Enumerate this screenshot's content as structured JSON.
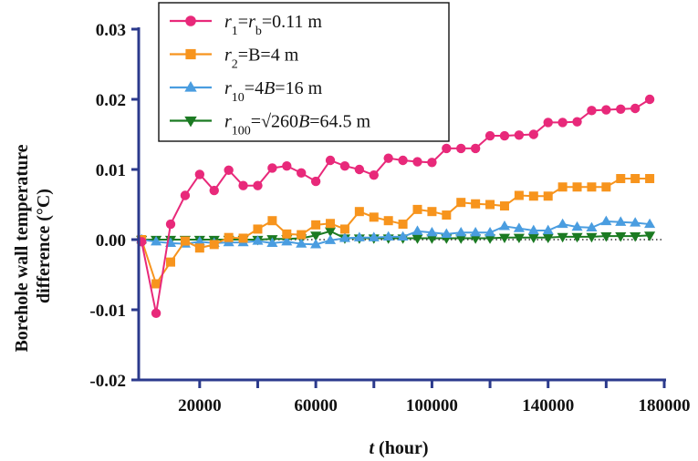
{
  "chart_data": {
    "type": "line",
    "xlabel": "t (hour)",
    "xlabel_var": "t",
    "xlabel_unit": " (hour)",
    "ylabel": "Borehole wall temperature difference (°C)",
    "ylabel_line1": "Borehole wall temperature",
    "ylabel_line2": "difference (°C)",
    "xlim": [
      -1000,
      180000
    ],
    "ylim": [
      -0.02,
      0.03
    ],
    "x_ticks": [
      20000,
      60000,
      100000,
      140000,
      180000
    ],
    "x_tick_labels": [
      "20000",
      "60000",
      "100000",
      "140000",
      "180000"
    ],
    "y_ticks": [
      -0.02,
      -0.01,
      0.0,
      0.01,
      0.02,
      0.03
    ],
    "y_tick_labels": [
      "-0.02",
      "-0.01",
      "0.00",
      "0.01",
      "0.02",
      "0.03"
    ],
    "zero_line": "dotted",
    "legend_position": "top-left",
    "x": [
      0,
      5000,
      10000,
      15000,
      20000,
      25000,
      30000,
      35000,
      40000,
      45000,
      50000,
      55000,
      60000,
      65000,
      70000,
      75000,
      80000,
      85000,
      90000,
      95000,
      100000,
      105000,
      110000,
      115000,
      120000,
      125000,
      130000,
      135000,
      140000,
      145000,
      150000,
      155000,
      160000,
      165000,
      170000,
      175000
    ],
    "series": [
      {
        "name": "r1=rb=0.11 m",
        "legend_parts": [
          [
            "r",
            "i"
          ],
          [
            "1",
            "sub"
          ],
          [
            "=",
            "n"
          ],
          [
            "r",
            "i"
          ],
          [
            "b",
            "sub"
          ],
          [
            "=0.11 m",
            "n"
          ]
        ],
        "color": "#e8297a",
        "marker": "circle",
        "values": [
          -0.0003,
          -0.0105,
          0.0022,
          0.0063,
          0.0093,
          0.007,
          0.0099,
          0.0077,
          0.0077,
          0.0102,
          0.0105,
          0.0095,
          0.0083,
          0.0113,
          0.0105,
          0.01,
          0.0092,
          0.0116,
          0.0113,
          0.0111,
          0.011,
          0.013,
          0.013,
          0.013,
          0.0148,
          0.0148,
          0.0149,
          0.015,
          0.0167,
          0.0167,
          0.0168,
          0.0184,
          0.0185,
          0.0186,
          0.0187,
          0.02
        ]
      },
      {
        "name": "r2=B=4 m",
        "legend_parts": [
          [
            "r",
            "i"
          ],
          [
            "2",
            "sub"
          ],
          [
            "=B=4 m",
            "n"
          ]
        ],
        "color": "#f7941d",
        "marker": "square",
        "values": [
          0.0,
          -0.0063,
          -0.0032,
          -0.0002,
          -0.0012,
          -0.0007,
          0.0003,
          0.0002,
          0.0015,
          0.0027,
          0.0008,
          0.0007,
          0.0021,
          0.0023,
          0.0015,
          0.004,
          0.0032,
          0.0027,
          0.0022,
          0.0043,
          0.004,
          0.0035,
          0.0053,
          0.0051,
          0.005,
          0.0048,
          0.0063,
          0.0062,
          0.0062,
          0.0075,
          0.0075,
          0.0075,
          0.0075,
          0.0087,
          0.0087,
          0.0087
        ]
      },
      {
        "name": "r10=4B=16 m",
        "legend_parts": [
          [
            "r",
            "i"
          ],
          [
            "10",
            "sub"
          ],
          [
            "=4",
            "n"
          ],
          [
            "B",
            "i"
          ],
          [
            "=16 m",
            "n"
          ]
        ],
        "color": "#4a9de0",
        "marker": "triangle-up",
        "values": [
          0.0,
          -0.0003,
          -0.0005,
          -0.0006,
          -0.0003,
          -0.0005,
          -0.0004,
          -0.0004,
          -0.0002,
          -0.0005,
          -0.0003,
          -0.0006,
          -0.0007,
          -0.0001,
          0.0002,
          0.0003,
          0.0003,
          0.0004,
          0.0004,
          0.0012,
          0.001,
          0.0008,
          0.001,
          0.001,
          0.001,
          0.0019,
          0.0016,
          0.0013,
          0.0013,
          0.0022,
          0.0018,
          0.0017,
          0.0026,
          0.0025,
          0.0024,
          0.0022
        ]
      },
      {
        "name": "r100=√260B=64.5 m",
        "legend_parts": [
          [
            "r",
            "i"
          ],
          [
            "100",
            "sub"
          ],
          [
            "=√260",
            "n"
          ],
          [
            "B",
            "i"
          ],
          [
            "=64.5 m",
            "n"
          ]
        ],
        "color": "#1b7a22",
        "marker": "triangle-down",
        "values": [
          0.0,
          0.0,
          0.0,
          0.0,
          0.0,
          0.0,
          0.0,
          0.0,
          0.0,
          0.0001,
          0.0001,
          0.0002,
          0.0006,
          0.0012,
          0.0002,
          0.0002,
          0.0002,
          0.0002,
          0.0002,
          0.0002,
          0.0002,
          0.0002,
          0.0002,
          0.0002,
          0.0002,
          0.0003,
          0.0003,
          0.0003,
          0.0003,
          0.0004,
          0.0004,
          0.0004,
          0.0005,
          0.0005,
          0.0005,
          0.0006
        ]
      }
    ]
  }
}
